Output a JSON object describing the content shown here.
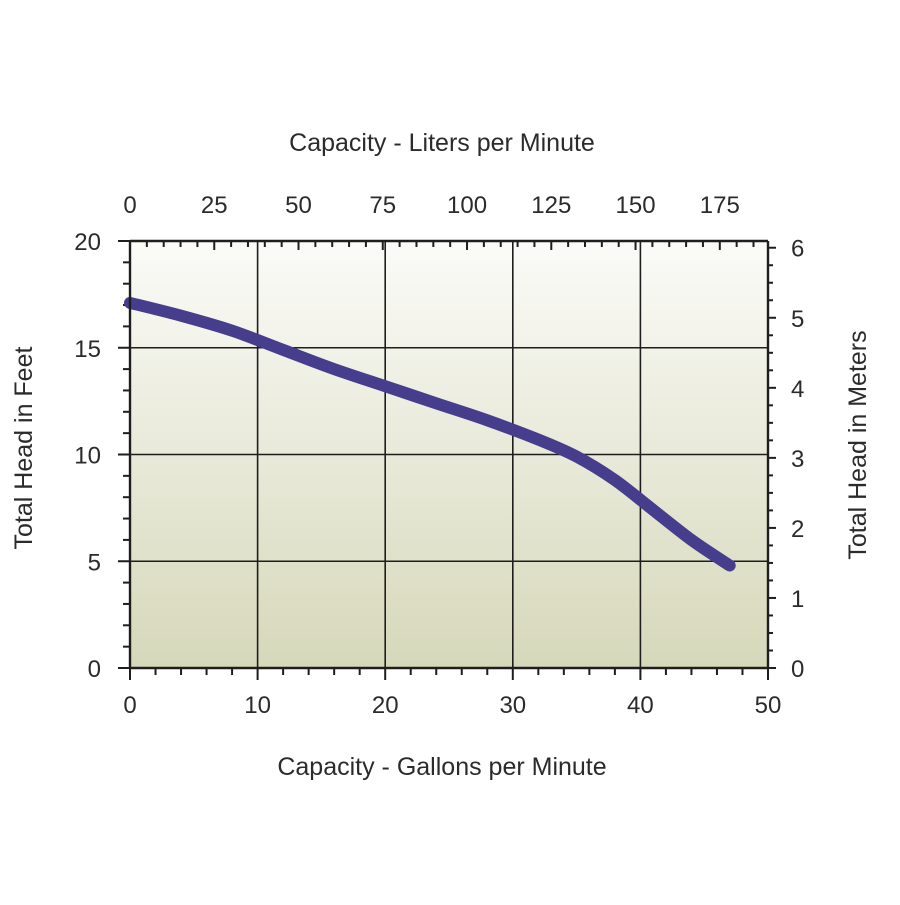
{
  "chart_data": {
    "type": "line",
    "top_axis_title": "Capacity - Liters per Minute",
    "xlabel": "Capacity - Gallons per Minute",
    "ylabel": "Total Head in Feet",
    "ylabel_right": "Total Head in Meters",
    "xlim": [
      0,
      50
    ],
    "ylim": [
      0,
      20
    ],
    "x_ticks": [
      "0",
      "10",
      "20",
      "30",
      "40",
      "50"
    ],
    "y_ticks": [
      "0",
      "5",
      "10",
      "15",
      "20"
    ],
    "top_ticks": [
      "0",
      "25",
      "50",
      "75",
      "100",
      "125",
      "150",
      "175"
    ],
    "top_tick_values": [
      0,
      25,
      50,
      75,
      100,
      125,
      150,
      175
    ],
    "top_lim": [
      0,
      189.3
    ],
    "right_ticks": [
      "0",
      "1",
      "2",
      "3",
      "4",
      "5",
      "6"
    ],
    "right_tick_values": [
      0,
      1,
      2,
      3,
      4,
      5,
      6
    ],
    "right_lim": [
      0,
      6.096
    ],
    "grid": true,
    "series": [
      {
        "x": [
          0,
          4,
          8,
          12,
          16,
          20,
          24,
          28,
          32,
          35,
          38,
          41,
          44,
          47
        ],
        "y": [
          17.1,
          16.5,
          15.8,
          14.9,
          14.0,
          13.2,
          12.4,
          11.6,
          10.7,
          9.9,
          8.8,
          7.4,
          6.0,
          4.8
        ]
      }
    ],
    "colors": {
      "line": "#463e8c",
      "grid": "#1e1e1e",
      "bg_top": "#fbfbf8",
      "bg_bottom": "#d6d8ba"
    }
  }
}
